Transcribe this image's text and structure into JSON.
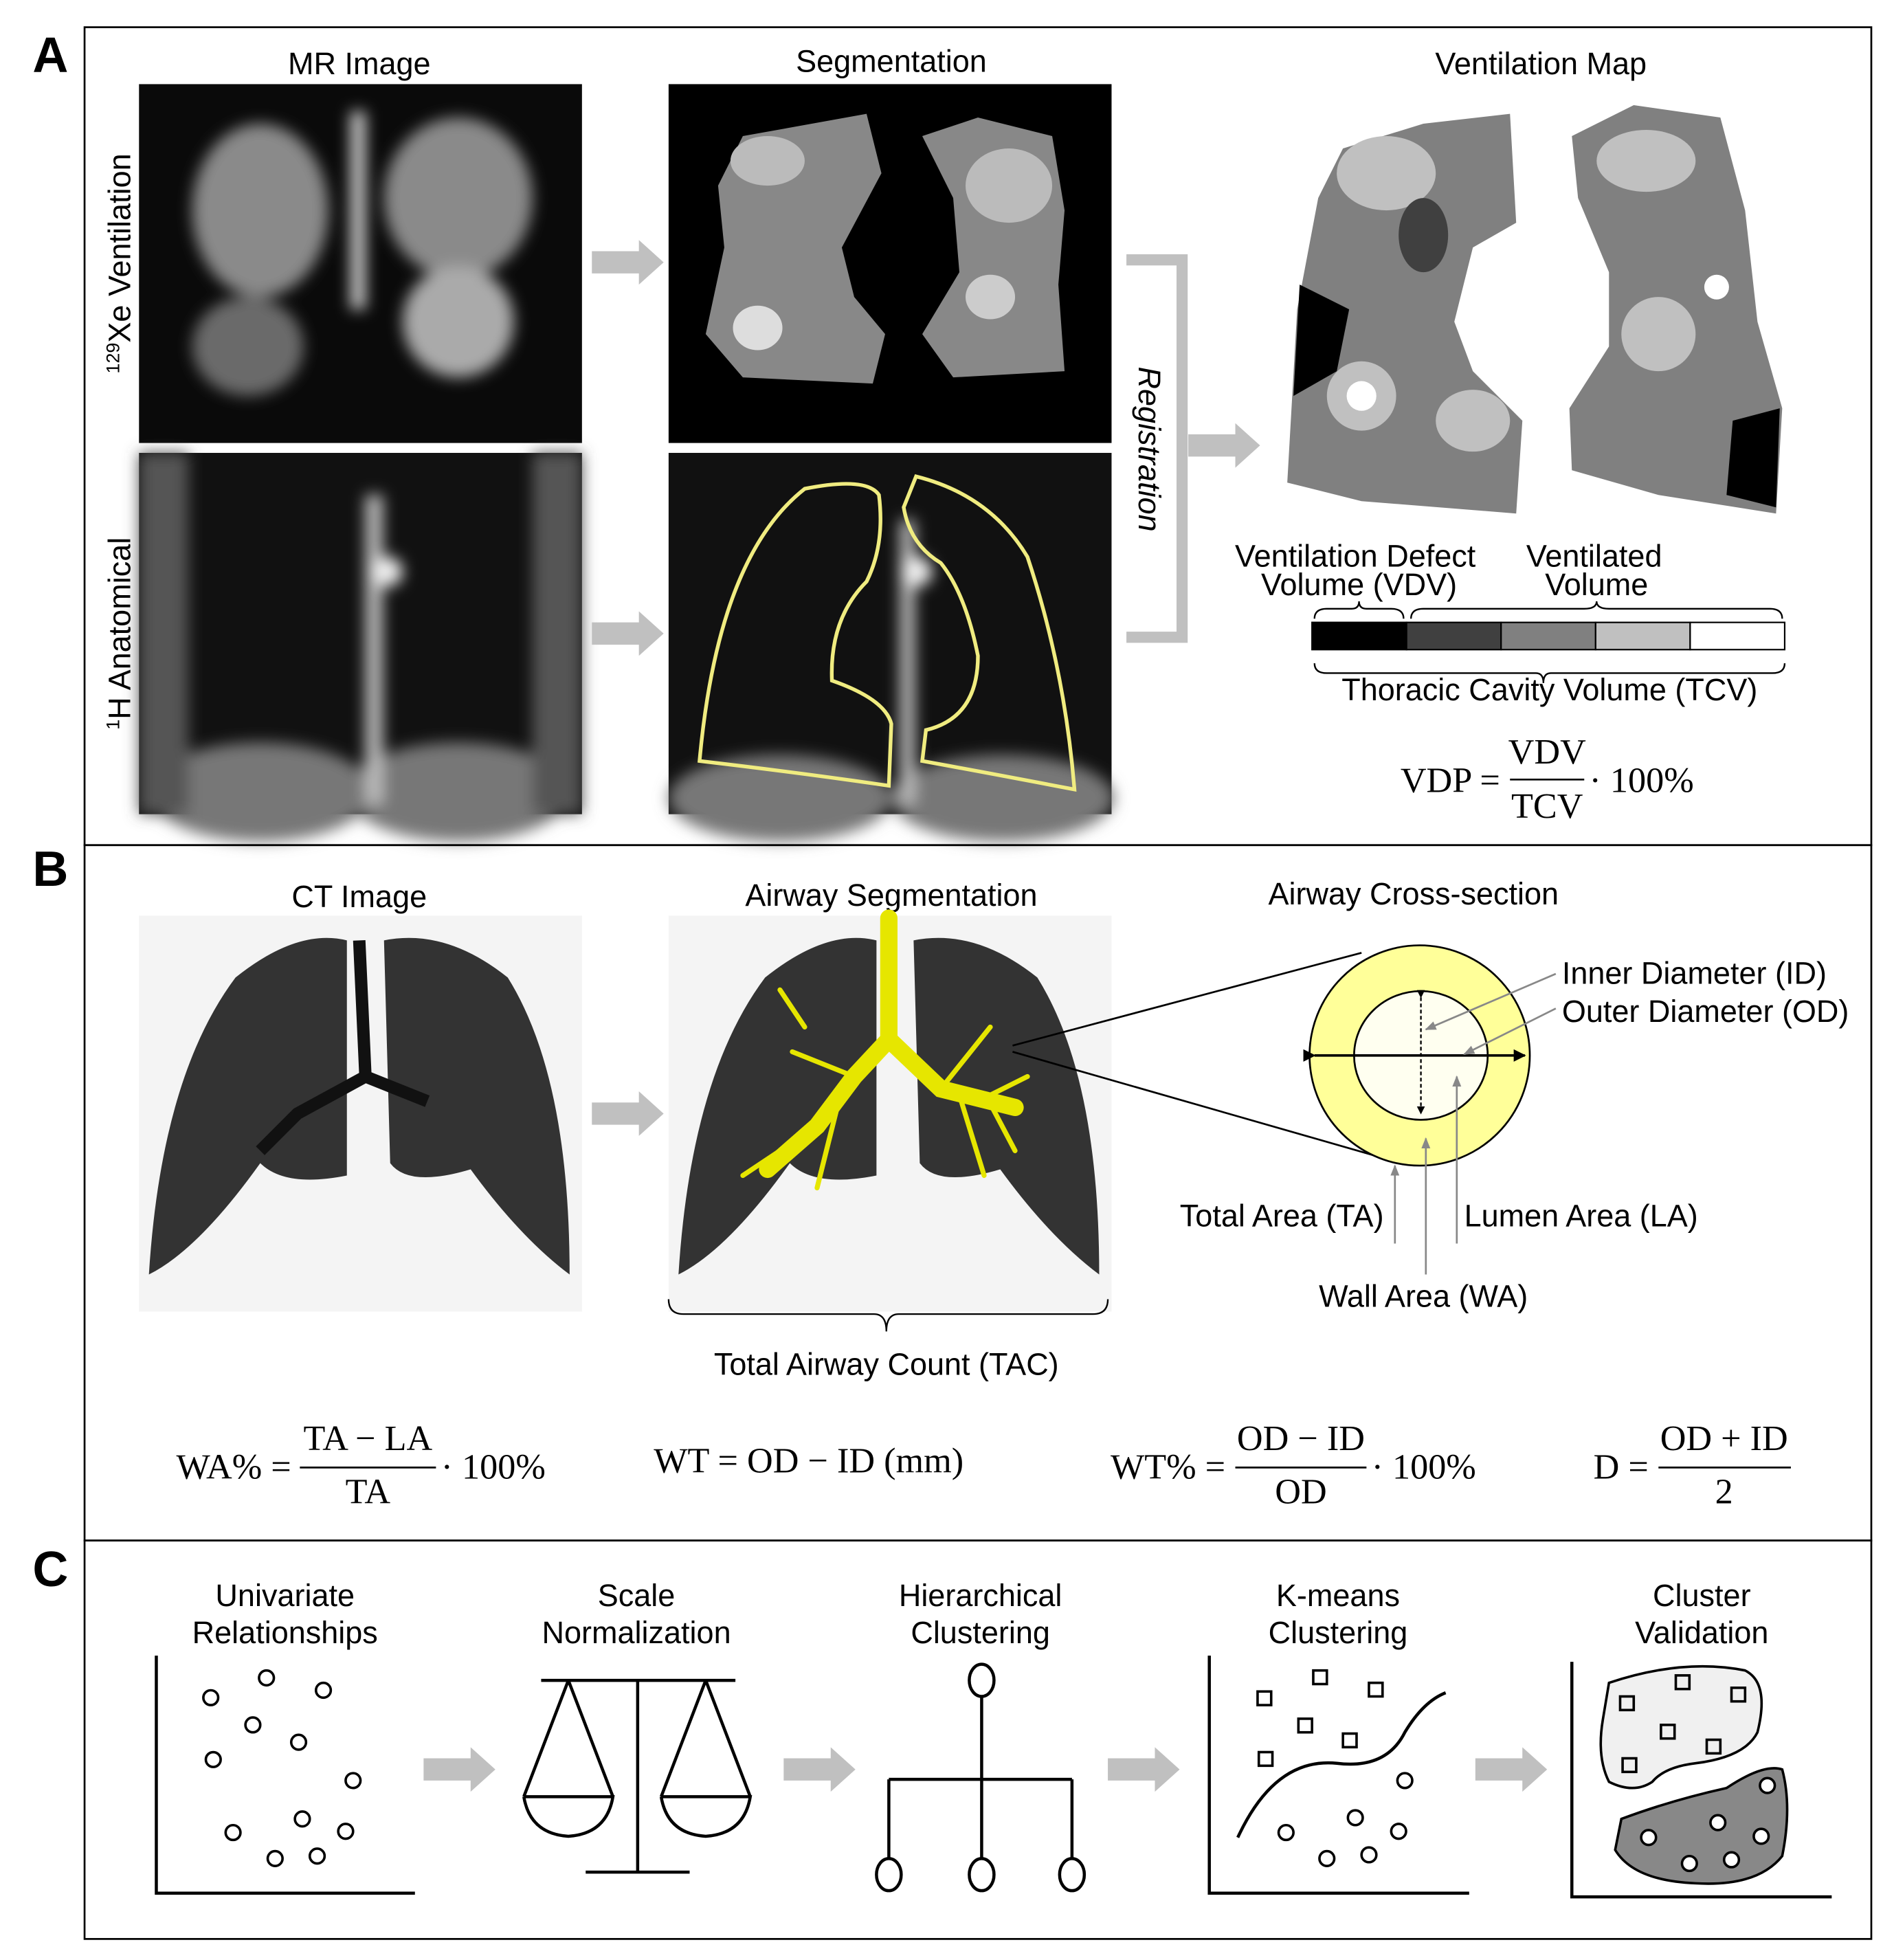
{
  "panels": {
    "A": {
      "label": "A",
      "titles": {
        "mr": "MR Image",
        "seg": "Segmentation",
        "vent": "Ventilation Map"
      },
      "row_labels": {
        "xe_sup": "129",
        "xe": "Xe Ventilation",
        "h_sup": "1",
        "h": "H Anatomical"
      },
      "registration": "Registration",
      "legend": {
        "vdv_line1": "Ventilation Defect",
        "vdv_line2": "Volume (VDV)",
        "vv_line1": "Ventilated",
        "vv_line2": "Volume",
        "tcv": "Thoracic Cavity Volume (TCV)",
        "scale_colors": [
          "#000000",
          "#404040",
          "#808080",
          "#c0c0c0",
          "#ffffff"
        ]
      },
      "formula": {
        "lhs": "VDP =",
        "num": "VDV",
        "den": "TCV",
        "tail": "· 100%"
      }
    },
    "B": {
      "label": "B",
      "titles": {
        "ct": "CT Image",
        "seg": "Airway Segmentation",
        "cross": "Airway Cross-section"
      },
      "tac": "Total Airway Count  (TAC)",
      "annotations": {
        "id": "Inner Diameter (ID)",
        "od": "Outer Diameter (OD)",
        "ta": "Total Area (TA)",
        "la": "Lumen Area (LA)",
        "wa": "Wall Area (WA)"
      },
      "airway_color": "#ffff99",
      "formulas": {
        "wa": {
          "lhs": "WA% =",
          "num": "TA − LA",
          "den": "TA",
          "tail": "· 100%"
        },
        "wt": {
          "text": "WT = OD − ID (mm)"
        },
        "wtp": {
          "lhs": "WT% =",
          "num": "OD − ID",
          "den": "OD",
          "tail": "· 100%"
        },
        "d": {
          "lhs": "D =",
          "num": "OD + ID",
          "den": "2"
        }
      }
    },
    "C": {
      "label": "C",
      "steps": [
        {
          "line1": "Univariate",
          "line2": "Relationships",
          "icon": "scatter-icon"
        },
        {
          "line1": "Scale",
          "line2": "Normalization",
          "icon": "balance-scale-icon"
        },
        {
          "line1": "Hierarchical",
          "line2": "Clustering",
          "icon": "dendrogram-icon"
        },
        {
          "line1": "K-means",
          "line2": "Clustering",
          "icon": "kmeans-icon"
        },
        {
          "line1": "Cluster",
          "line2": "Validation",
          "icon": "cluster-validation-icon"
        }
      ]
    }
  }
}
